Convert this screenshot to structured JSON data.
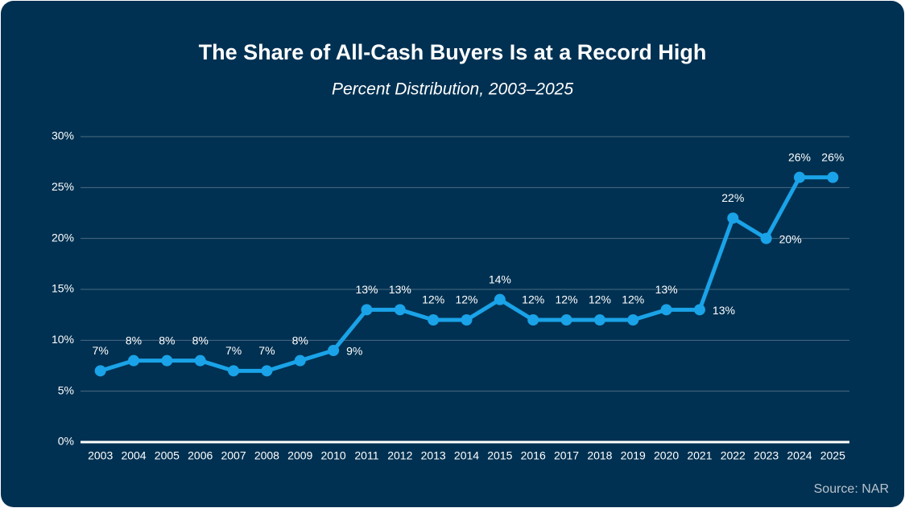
{
  "chart_data": {
    "type": "line",
    "title": "The Share of All-Cash Buyers Is at a Record High",
    "subtitle": "Percent Distribution, 2003–2025",
    "source": "Source: NAR",
    "categories": [
      "2003",
      "2004",
      "2005",
      "2006",
      "2007",
      "2008",
      "2009",
      "2010",
      "2011",
      "2012",
      "2013",
      "2014",
      "2015",
      "2016",
      "2017",
      "2018",
      "2019",
      "2020",
      "2021",
      "2022",
      "2023",
      "2024",
      "2025"
    ],
    "values": [
      7,
      8,
      8,
      8,
      7,
      7,
      8,
      9,
      13,
      13,
      12,
      12,
      14,
      12,
      12,
      12,
      12,
      13,
      13,
      22,
      20,
      26,
      26
    ],
    "value_labels": [
      "7%",
      "8%",
      "8%",
      "8%",
      "7%",
      "7%",
      "8%",
      "9%",
      "13%",
      "13%",
      "12%",
      "12%",
      "14%",
      "12%",
      "12%",
      "12%",
      "12%",
      "13%",
      "13%",
      "22%",
      "20%",
      "26%",
      "26%"
    ],
    "color": "#1aa3e8",
    "ylim": [
      0,
      30
    ],
    "yticks": [
      {
        "value": 0,
        "label": "0%"
      },
      {
        "value": 5,
        "label": "5%"
      },
      {
        "value": 10,
        "label": "10%"
      },
      {
        "value": 15,
        "label": "15%"
      },
      {
        "value": 20,
        "label": "20%"
      },
      {
        "value": 25,
        "label": "25%"
      },
      {
        "value": 30,
        "label": "30%"
      }
    ],
    "grid": true
  }
}
